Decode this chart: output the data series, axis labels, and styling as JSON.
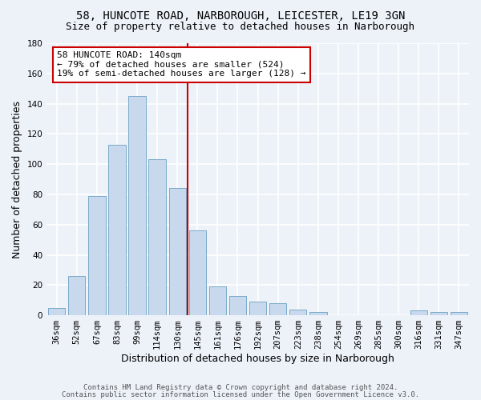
{
  "title1": "58, HUNCOTE ROAD, NARBOROUGH, LEICESTER, LE19 3GN",
  "title2": "Size of property relative to detached houses in Narborough",
  "xlabel": "Distribution of detached houses by size in Narborough",
  "ylabel": "Number of detached properties",
  "categories": [
    "36sqm",
    "52sqm",
    "67sqm",
    "83sqm",
    "99sqm",
    "114sqm",
    "130sqm",
    "145sqm",
    "161sqm",
    "176sqm",
    "192sqm",
    "207sqm",
    "223sqm",
    "238sqm",
    "254sqm",
    "269sqm",
    "285sqm",
    "300sqm",
    "316sqm",
    "331sqm",
    "347sqm"
  ],
  "values": [
    5,
    26,
    79,
    113,
    145,
    103,
    84,
    56,
    19,
    13,
    9,
    8,
    4,
    2,
    0,
    0,
    0,
    0,
    3,
    2,
    2
  ],
  "bar_color": "#c8d9ed",
  "bar_edge_color": "#7aaac8",
  "vline_x_idx": 7,
  "vline_color": "#cc0000",
  "annotation_line1": "58 HUNCOTE ROAD: 140sqm",
  "annotation_line2": "← 79% of detached houses are smaller (524)",
  "annotation_line3": "19% of semi-detached houses are larger (128) →",
  "annotation_box_color": "#ffffff",
  "annotation_box_edge": "#cc0000",
  "ylim": [
    0,
    180
  ],
  "yticks": [
    0,
    20,
    40,
    60,
    80,
    100,
    120,
    140,
    160,
    180
  ],
  "footer1": "Contains HM Land Registry data © Crown copyright and database right 2024.",
  "footer2": "Contains public sector information licensed under the Open Government Licence v3.0.",
  "bg_color": "#edf2f9",
  "plot_bg_color": "#edf2f9",
  "grid_color": "#ffffff",
  "title_fontsize": 10,
  "subtitle_fontsize": 9,
  "tick_fontsize": 7.5,
  "label_fontsize": 9,
  "footer_fontsize": 6.5
}
